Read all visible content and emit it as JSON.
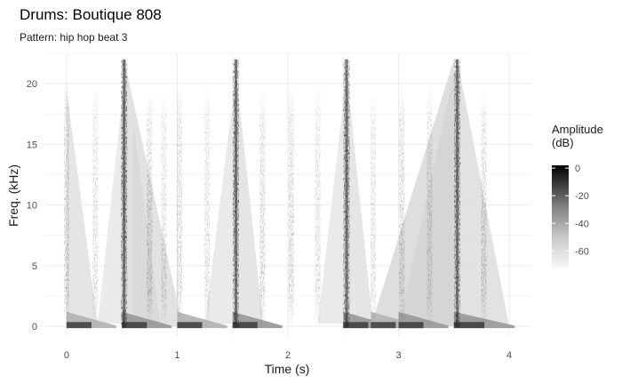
{
  "chart_data": {
    "type": "heatmap",
    "title": "Drums: Boutique 808",
    "subtitle": "Pattern: hip hop beat 3",
    "xlabel": "Time (s)",
    "ylabel": "Freq. (kHz)",
    "xlim": [
      -0.2,
      4.2
    ],
    "ylim": [
      -0.8,
      22.5
    ],
    "x_ticks": [
      0,
      1,
      2,
      3,
      4
    ],
    "y_ticks": [
      0,
      5,
      10,
      15,
      20
    ],
    "grid": true,
    "colormap": {
      "low": "#f5f5f5",
      "high": "#000000"
    },
    "legend": {
      "title_line1": "Amplitude",
      "title_line2": "(dB)",
      "position": "right",
      "ticks": [
        0,
        -20,
        -40,
        -60
      ],
      "range": [
        -72,
        2
      ]
    },
    "kicks": [
      {
        "t": 0.0,
        "decay": 0.45,
        "level": 0.25
      },
      {
        "t": 0.5,
        "decay": 0.45,
        "level": 0.35
      },
      {
        "t": 1.0,
        "decay": 0.45,
        "level": 0.25
      },
      {
        "t": 1.5,
        "decay": 0.45,
        "level": 0.35
      },
      {
        "t": 2.5,
        "decay": 0.45,
        "level": 0.35
      },
      {
        "t": 2.75,
        "decay": 0.45,
        "level": 0.25
      },
      {
        "t": 3.0,
        "decay": 0.45,
        "level": 0.35
      },
      {
        "t": 3.5,
        "decay": 0.55,
        "level": 0.35
      }
    ],
    "hits": [
      {
        "t": 0.0,
        "top": 20.5,
        "intensity": 0.45,
        "type": "hat"
      },
      {
        "t": 0.26,
        "top": 20.0,
        "intensity": 0.3,
        "type": "hat"
      },
      {
        "t": 0.52,
        "top": 22.0,
        "intensity": 0.85,
        "type": "snare"
      },
      {
        "t": 0.75,
        "top": 19.5,
        "intensity": 0.5,
        "type": "hat"
      },
      {
        "t": 0.88,
        "top": 19.5,
        "intensity": 0.3,
        "type": "hat"
      },
      {
        "t": 1.02,
        "top": 20.0,
        "intensity": 0.4,
        "type": "hat"
      },
      {
        "t": 1.27,
        "top": 20.0,
        "intensity": 0.3,
        "type": "hat"
      },
      {
        "t": 1.53,
        "top": 22.0,
        "intensity": 0.85,
        "type": "snare"
      },
      {
        "t": 1.77,
        "top": 19.5,
        "intensity": 0.45,
        "type": "hat"
      },
      {
        "t": 2.03,
        "top": 20.0,
        "intensity": 0.45,
        "type": "hat"
      },
      {
        "t": 2.27,
        "top": 20.0,
        "intensity": 0.3,
        "type": "hat"
      },
      {
        "t": 2.53,
        "top": 22.0,
        "intensity": 0.85,
        "type": "snare"
      },
      {
        "t": 2.77,
        "top": 19.5,
        "intensity": 0.3,
        "type": "hat"
      },
      {
        "t": 3.03,
        "top": 20.0,
        "intensity": 0.45,
        "type": "hat"
      },
      {
        "t": 3.28,
        "top": 20.0,
        "intensity": 0.35,
        "type": "hat"
      },
      {
        "t": 3.53,
        "top": 22.0,
        "intensity": 0.85,
        "type": "snare"
      },
      {
        "t": 3.77,
        "top": 19.5,
        "intensity": 0.45,
        "type": "hat"
      }
    ],
    "sweeps": [
      {
        "t0": 0.0,
        "t1": 0.28,
        "f_bottom": 0.2,
        "f_top": 19.5,
        "shade": 0.08,
        "dir": "down"
      },
      {
        "t0": 0.28,
        "t1": 0.52,
        "f_bottom": 0.2,
        "f_top": 20.0,
        "shade": 0.06,
        "dir": "up"
      },
      {
        "t0": 0.52,
        "t1": 1.05,
        "f_bottom": 0.0,
        "f_top": 22.0,
        "shade": 0.1,
        "dir": "down"
      },
      {
        "t0": 0.6,
        "t1": 0.85,
        "f_bottom": 0.0,
        "f_top": 17.0,
        "shade": 0.12,
        "dir": "down"
      },
      {
        "t0": 1.25,
        "t1": 1.52,
        "f_bottom": 0.2,
        "f_top": 20.0,
        "shade": 0.06,
        "dir": "up"
      },
      {
        "t0": 1.53,
        "t1": 1.78,
        "f_bottom": 0.0,
        "f_top": 21.0,
        "shade": 0.08,
        "dir": "down"
      },
      {
        "t0": 2.27,
        "t1": 2.52,
        "f_bottom": 0.2,
        "f_top": 20.0,
        "shade": 0.06,
        "dir": "up"
      },
      {
        "t0": 2.53,
        "t1": 2.77,
        "f_bottom": 0.0,
        "f_top": 21.0,
        "shade": 0.08,
        "dir": "down"
      },
      {
        "t0": 2.75,
        "t1": 3.5,
        "f_bottom": 0.0,
        "f_top": 22.0,
        "shade": 0.12,
        "dir": "up"
      },
      {
        "t0": 3.0,
        "t1": 3.52,
        "f_bottom": 0.0,
        "f_top": 21.5,
        "shade": 0.14,
        "dir": "up"
      },
      {
        "t0": 3.53,
        "t1": 4.0,
        "f_bottom": 0.0,
        "f_top": 22.0,
        "shade": 0.1,
        "dir": "down"
      }
    ]
  }
}
